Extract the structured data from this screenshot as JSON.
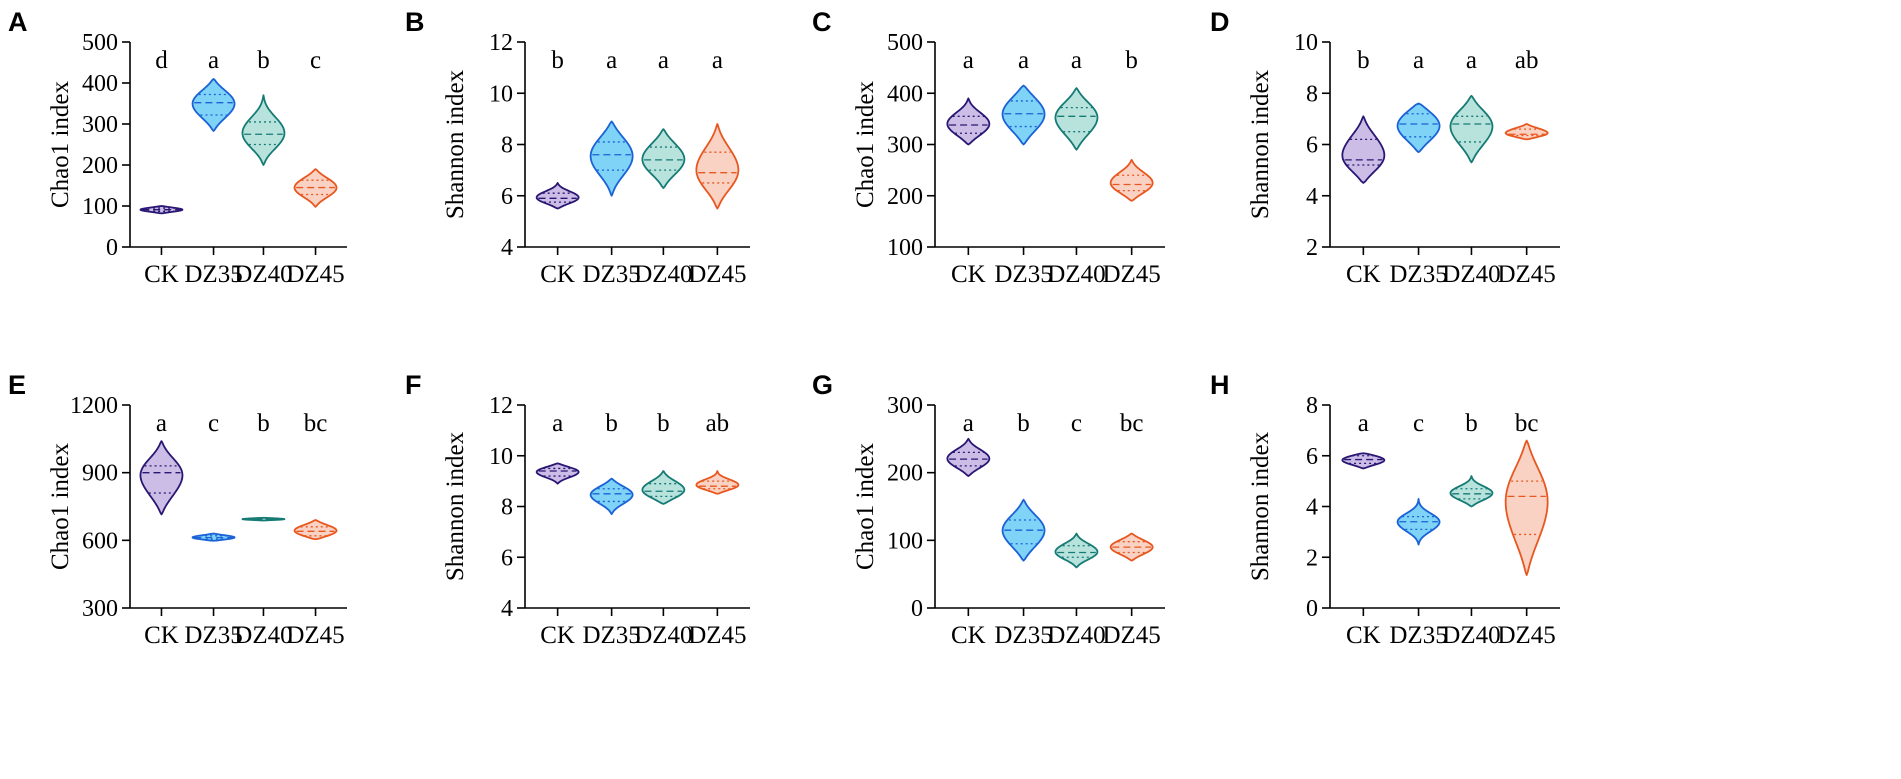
{
  "figure": {
    "categories": [
      "CK",
      "DZ35",
      "DZ40",
      "DZ45"
    ],
    "series_colors": {
      "CK": {
        "fill": "#cbbde6",
        "stroke": "#2a1773"
      },
      "DZ35": {
        "fill": "#7fd3f7",
        "stroke": "#1a62d6"
      },
      "DZ40": {
        "fill": "#b8e3dc",
        "stroke": "#167a75"
      },
      "DZ45": {
        "fill": "#f9d2c3",
        "stroke": "#e8571f"
      }
    }
  },
  "chart_data": [
    {
      "panel": "A",
      "type": "violin",
      "ylabel": "Chao1 index",
      "ylim": [
        0,
        500
      ],
      "yticks": [
        "0",
        "100",
        "200",
        "300",
        "400",
        "500"
      ],
      "categories": [
        "CK",
        "DZ35",
        "DZ40",
        "DZ45"
      ],
      "significance": [
        "d",
        "a",
        "b",
        "c"
      ],
      "violins": [
        {
          "min": 82,
          "max": 100,
          "median": 91,
          "q1": 87,
          "q3": 95
        },
        {
          "min": 283,
          "max": 410,
          "median": 352,
          "q1": 322,
          "q3": 372
        },
        {
          "min": 200,
          "max": 370,
          "median": 275,
          "q1": 250,
          "q3": 305
        },
        {
          "min": 98,
          "max": 190,
          "median": 145,
          "q1": 128,
          "q3": 163
        }
      ]
    },
    {
      "panel": "B",
      "type": "violin",
      "ylabel": "Shannon index",
      "ylim": [
        4,
        12
      ],
      "yticks": [
        "4",
        "6",
        "8",
        "10",
        "12"
      ],
      "categories": [
        "CK",
        "DZ35",
        "DZ40",
        "DZ45"
      ],
      "significance": [
        "b",
        "a",
        "a",
        "a"
      ],
      "violins": [
        {
          "min": 5.5,
          "max": 6.5,
          "median": 5.9,
          "q1": 5.75,
          "q3": 6.1
        },
        {
          "min": 6.0,
          "max": 8.9,
          "median": 7.6,
          "q1": 7.0,
          "q3": 8.1
        },
        {
          "min": 6.3,
          "max": 8.6,
          "median": 7.4,
          "q1": 7.0,
          "q3": 7.9
        },
        {
          "min": 5.5,
          "max": 8.8,
          "median": 6.9,
          "q1": 6.5,
          "q3": 7.7
        }
      ]
    },
    {
      "panel": "C",
      "type": "violin",
      "ylabel": "Chao1 index",
      "ylim": [
        100,
        500
      ],
      "yticks": [
        "100",
        "200",
        "300",
        "400",
        "500"
      ],
      "categories": [
        "CK",
        "DZ35",
        "DZ40",
        "DZ45"
      ],
      "significance": [
        "a",
        "a",
        "a",
        "b"
      ],
      "violins": [
        {
          "min": 300,
          "max": 390,
          "median": 338,
          "q1": 322,
          "q3": 355
        },
        {
          "min": 300,
          "max": 415,
          "median": 360,
          "q1": 335,
          "q3": 385
        },
        {
          "min": 290,
          "max": 410,
          "median": 355,
          "q1": 325,
          "q3": 372
        },
        {
          "min": 190,
          "max": 270,
          "median": 222,
          "q1": 210,
          "q3": 240
        }
      ]
    },
    {
      "panel": "D",
      "type": "violin",
      "ylabel": "Shannon index",
      "ylim": [
        2,
        10
      ],
      "yticks": [
        "2",
        "4",
        "6",
        "8",
        "10"
      ],
      "categories": [
        "CK",
        "DZ35",
        "DZ40",
        "DZ45"
      ],
      "significance": [
        "b",
        "a",
        "a",
        "ab"
      ],
      "violins": [
        {
          "min": 4.5,
          "max": 7.1,
          "median": 5.4,
          "q1": 5.2,
          "q3": 6.2
        },
        {
          "min": 5.7,
          "max": 7.6,
          "median": 6.8,
          "q1": 6.3,
          "q3": 7.2
        },
        {
          "min": 5.3,
          "max": 7.9,
          "median": 6.8,
          "q1": 6.1,
          "q3": 7.1
        },
        {
          "min": 6.2,
          "max": 6.8,
          "median": 6.4,
          "q1": 6.35,
          "q3": 6.6
        }
      ]
    },
    {
      "panel": "E",
      "type": "violin",
      "ylabel": "Chao1 index",
      "ylim": [
        300,
        1200
      ],
      "yticks": [
        "300",
        "600",
        "900",
        "1200"
      ],
      "categories": [
        "CK",
        "DZ35",
        "DZ40",
        "DZ45"
      ],
      "significance": [
        "a",
        "c",
        "b",
        "bc"
      ],
      "violins": [
        {
          "min": 715,
          "max": 1040,
          "median": 900,
          "q1": 810,
          "q3": 930
        },
        {
          "min": 598,
          "max": 630,
          "median": 612,
          "q1": 605,
          "q3": 620
        },
        {
          "min": 688,
          "max": 700,
          "median": 694,
          "q1": 691,
          "q3": 697
        },
        {
          "min": 605,
          "max": 690,
          "median": 640,
          "q1": 620,
          "q3": 660
        }
      ]
    },
    {
      "panel": "F",
      "type": "violin",
      "ylabel": "Shannon index",
      "ylim": [
        4,
        12
      ],
      "yticks": [
        "4",
        "6",
        "8",
        "10",
        "12"
      ],
      "categories": [
        "CK",
        "DZ35",
        "DZ40",
        "DZ45"
      ],
      "significance": [
        "a",
        "b",
        "b",
        "ab"
      ],
      "violins": [
        {
          "min": 8.9,
          "max": 9.7,
          "median": 9.4,
          "q1": 9.2,
          "q3": 9.5
        },
        {
          "min": 7.7,
          "max": 9.1,
          "median": 8.5,
          "q1": 8.2,
          "q3": 8.7
        },
        {
          "min": 8.1,
          "max": 9.4,
          "median": 8.6,
          "q1": 8.4,
          "q3": 8.9
        },
        {
          "min": 8.5,
          "max": 9.4,
          "median": 8.8,
          "q1": 8.7,
          "q3": 9.0
        }
      ]
    },
    {
      "panel": "G",
      "type": "violin",
      "ylabel": "Chao1 index",
      "ylim": [
        0,
        300
      ],
      "yticks": [
        "0",
        "100",
        "200",
        "300"
      ],
      "categories": [
        "CK",
        "DZ35",
        "DZ40",
        "DZ45"
      ],
      "significance": [
        "a",
        "b",
        "c",
        "bc"
      ],
      "violins": [
        {
          "min": 195,
          "max": 250,
          "median": 220,
          "q1": 210,
          "q3": 230
        },
        {
          "min": 70,
          "max": 160,
          "median": 115,
          "q1": 95,
          "q3": 130
        },
        {
          "min": 60,
          "max": 110,
          "median": 82,
          "q1": 75,
          "q3": 92
        },
        {
          "min": 70,
          "max": 110,
          "median": 90,
          "q1": 82,
          "q3": 98
        }
      ]
    },
    {
      "panel": "H",
      "type": "violin",
      "ylabel": "Shannon index",
      "ylim": [
        0,
        8
      ],
      "yticks": [
        "0",
        "2",
        "4",
        "6",
        "8"
      ],
      "categories": [
        "CK",
        "DZ35",
        "DZ40",
        "DZ45"
      ],
      "significance": [
        "a",
        "c",
        "b",
        "bc"
      ],
      "violins": [
        {
          "min": 5.5,
          "max": 6.1,
          "median": 5.85,
          "q1": 5.7,
          "q3": 6.0
        },
        {
          "min": 2.5,
          "max": 4.3,
          "median": 3.4,
          "q1": 3.1,
          "q3": 3.6
        },
        {
          "min": 4.0,
          "max": 5.2,
          "median": 4.5,
          "q1": 4.3,
          "q3": 4.7
        },
        {
          "min": 1.3,
          "max": 6.6,
          "median": 4.4,
          "q1": 2.9,
          "q3": 5.0
        }
      ]
    }
  ]
}
